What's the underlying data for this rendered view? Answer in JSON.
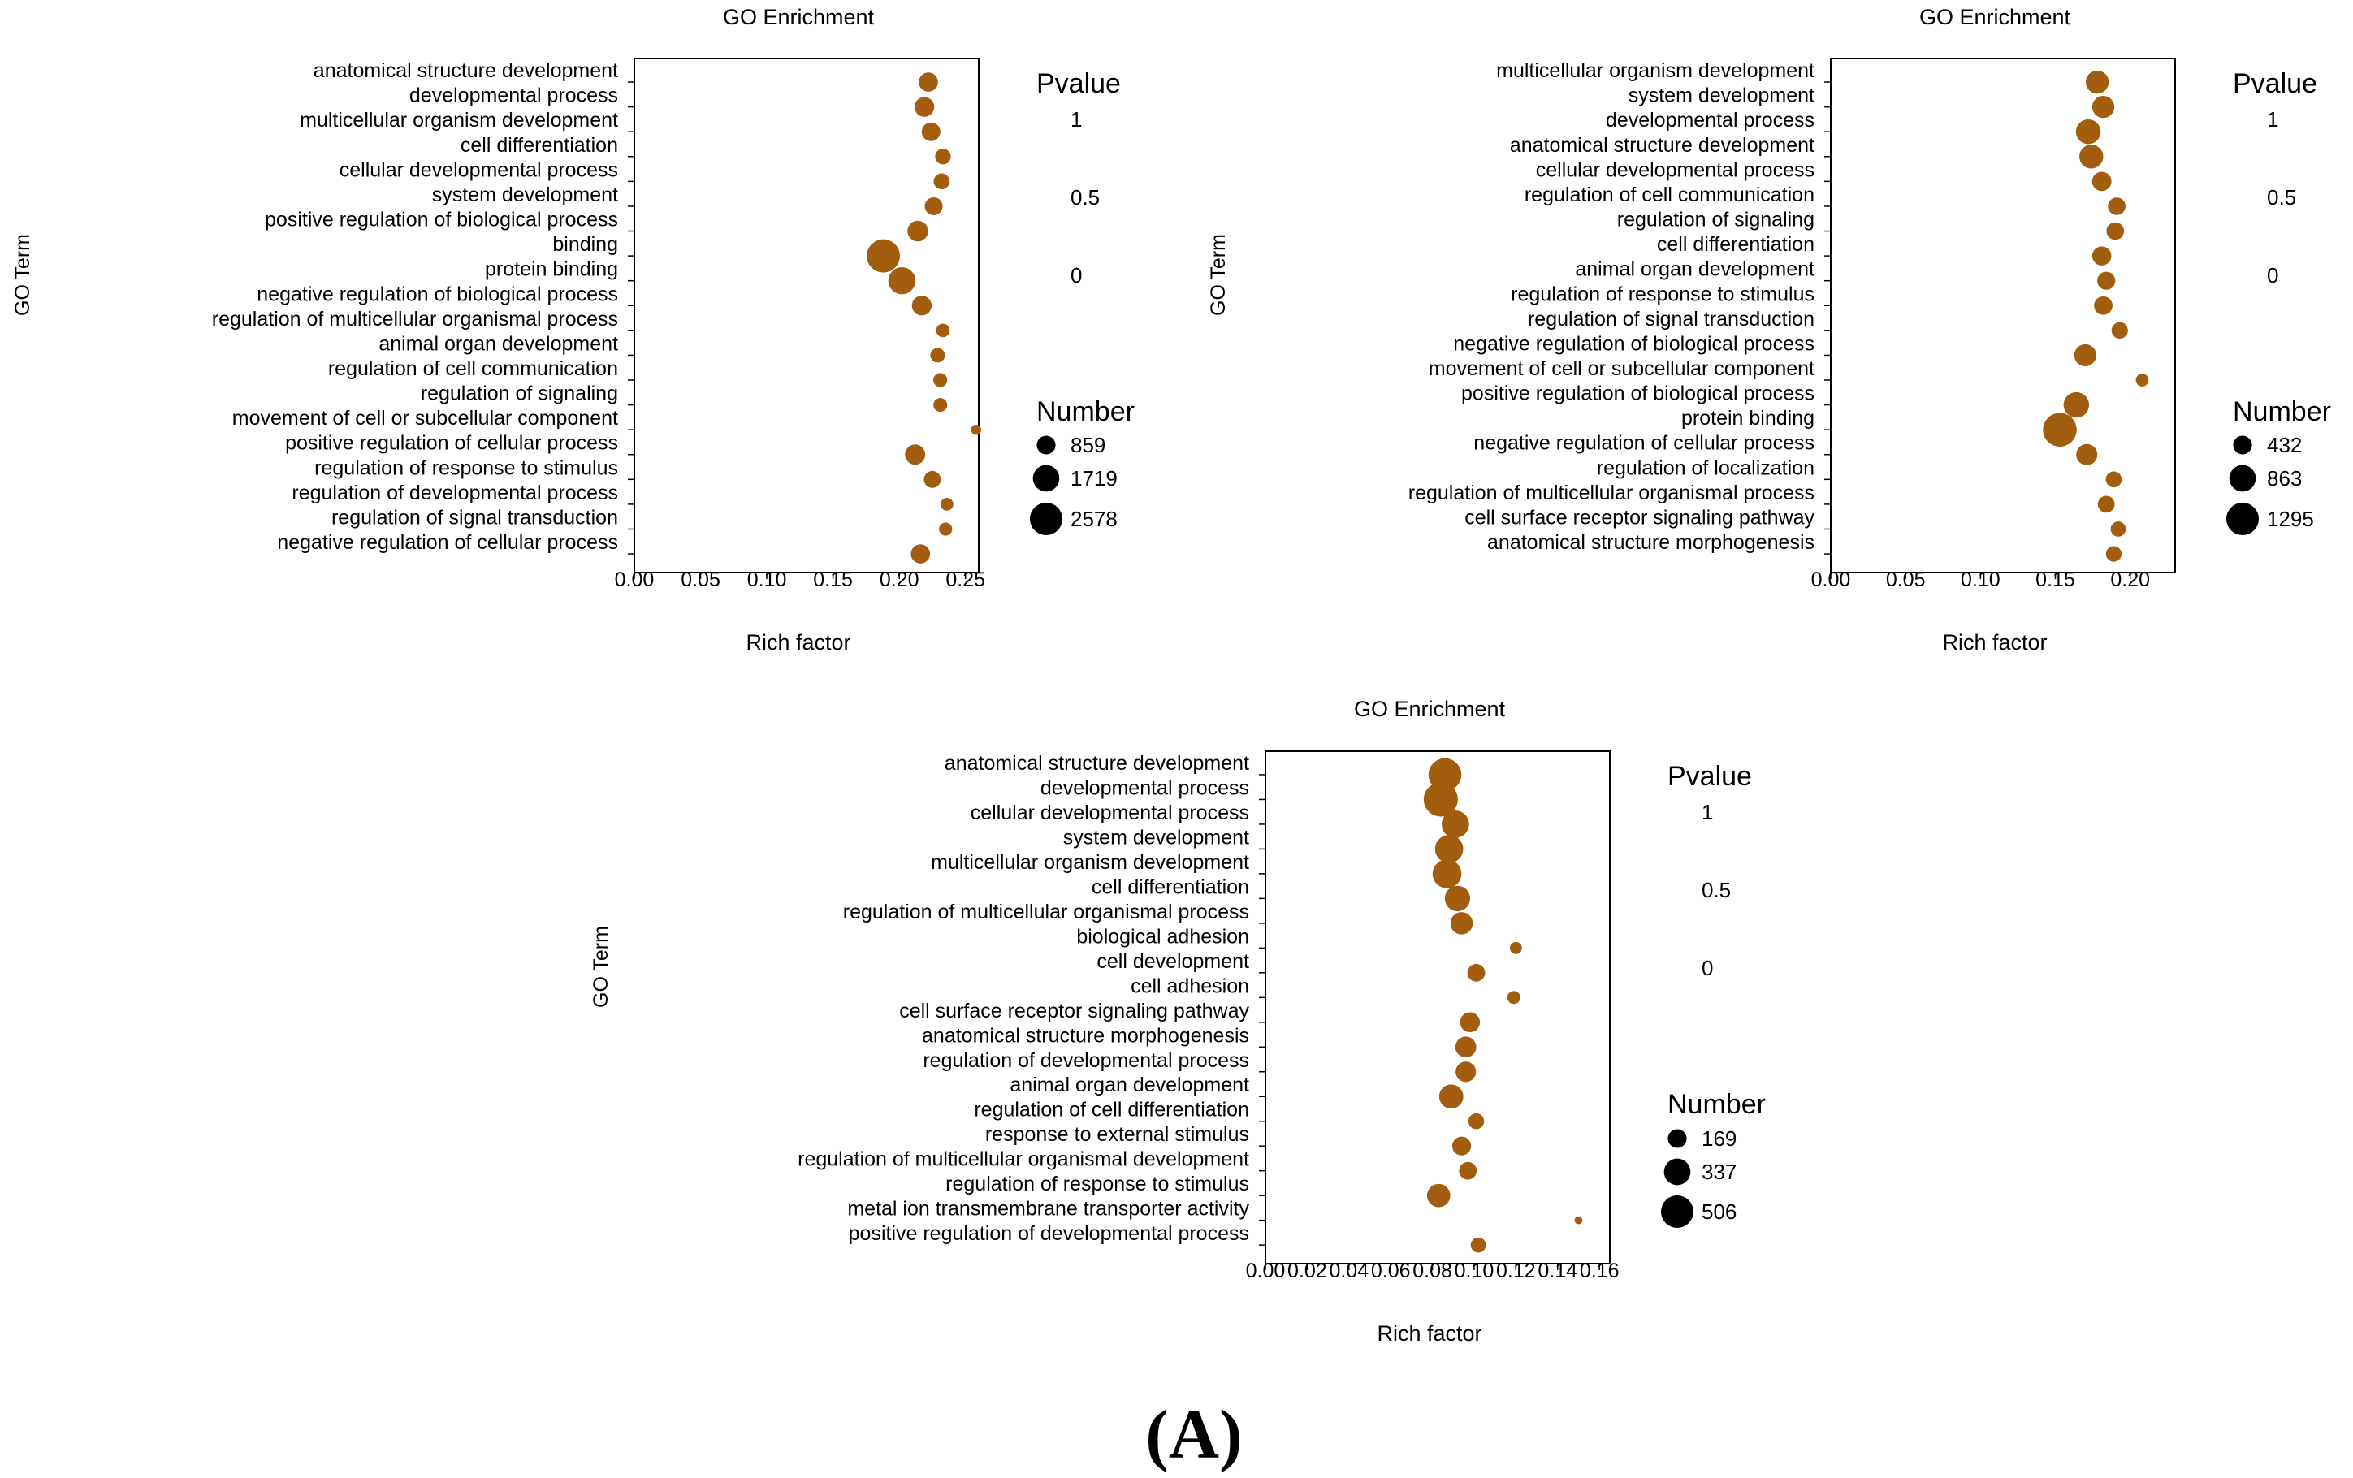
{
  "figure_label": "(A)",
  "chart_data": [
    {
      "type": "scatter",
      "title": "GO Enrichment",
      "xlabel": "Rich factor",
      "ylabel": "GO Term",
      "xlim": [
        0,
        0.26
      ],
      "xticks": [
        "0.00",
        "0.05",
        "0.10",
        "0.15",
        "0.20",
        "0.25"
      ],
      "xtick_values": [
        0,
        0.05,
        0.1,
        0.15,
        0.2,
        0.25
      ],
      "categories": [
        "anatomical structure development",
        "developmental process",
        "multicellular organism development",
        "cell differentiation",
        "cellular developmental process",
        "system development",
        "positive regulation of biological process",
        "binding",
        "protein binding",
        "negative regulation of biological process",
        "regulation of multicellular organismal process",
        "animal organ development",
        "regulation of cell communication",
        "regulation of signaling",
        "movement of cell or subcellular component",
        "positive regulation of cellular process",
        "regulation of response to stimulus",
        "regulation of developmental process",
        "regulation of signal transduction",
        "negative regulation of cellular process"
      ],
      "rich_factor": [
        0.222,
        0.219,
        0.224,
        0.233,
        0.232,
        0.226,
        0.214,
        0.188,
        0.202,
        0.217,
        0.233,
        0.229,
        0.231,
        0.231,
        0.258,
        0.212,
        0.225,
        0.236,
        0.235,
        0.216
      ],
      "number": [
        900,
        950,
        850,
        600,
        620,
        780,
        1050,
        2700,
        1800,
        950,
        450,
        520,
        480,
        470,
        250,
        1000,
        700,
        400,
        420,
        900
      ],
      "pvalue": [
        0,
        0,
        0,
        0,
        0,
        0,
        0,
        0,
        0,
        0,
        0,
        0,
        0,
        0,
        0,
        0,
        0,
        0,
        0,
        0
      ],
      "point_color": "#a35d0e",
      "legend_pvalue": {
        "title": "Pvalue",
        "labels": [
          "1",
          "0.5",
          "0"
        ]
      },
      "legend_number": {
        "title": "Number",
        "labels": [
          "859",
          "1719",
          "2578"
        ],
        "values": [
          859,
          1719,
          2578
        ]
      }
    },
    {
      "type": "scatter",
      "title": "GO Enrichment",
      "xlabel": "Rich factor",
      "ylabel": "GO Term",
      "xlim": [
        0,
        0.23
      ],
      "xticks": [
        "0.00",
        "0.05",
        "0.10",
        "0.15",
        "0.20"
      ],
      "xtick_values": [
        0,
        0.05,
        0.1,
        0.15,
        0.2
      ],
      "categories": [
        "multicellular organism development",
        "system development",
        "developmental process",
        "anatomical structure development",
        "cellular developmental process",
        "regulation of cell communication",
        "regulation of signaling",
        "cell differentiation",
        "animal organ development",
        "regulation of response to stimulus",
        "regulation of signal transduction",
        "negative regulation of biological process",
        "movement of cell or subcellular component",
        "positive regulation of biological process",
        "protein binding",
        "negative regulation of cellular process",
        "regulation of localization",
        "regulation of multicellular organismal process",
        "cell surface receptor signaling pathway",
        "anatomical structure morphogenesis"
      ],
      "rich_factor": [
        0.178,
        0.182,
        0.172,
        0.174,
        0.181,
        0.191,
        0.19,
        0.181,
        0.184,
        0.182,
        0.193,
        0.17,
        0.208,
        0.164,
        0.153,
        0.171,
        0.189,
        0.184,
        0.192,
        0.189
      ],
      "number": [
        650,
        600,
        750,
        700,
        460,
        380,
        380,
        450,
        400,
        420,
        330,
        600,
        200,
        800,
        1400,
        550,
        310,
        350,
        280,
        300
      ],
      "pvalue": [
        0,
        0,
        0,
        0,
        0,
        0,
        0,
        0,
        0,
        0,
        0,
        0,
        0,
        0,
        0,
        0,
        0,
        0,
        0,
        0
      ],
      "point_color": "#a35d0e",
      "legend_pvalue": {
        "title": "Pvalue",
        "labels": [
          "1",
          "0.5",
          "0"
        ]
      },
      "legend_number": {
        "title": "Number",
        "labels": [
          "432",
          "863",
          "1295"
        ],
        "values": [
          432,
          863,
          1295
        ]
      }
    },
    {
      "type": "scatter",
      "title": "GO Enrichment",
      "xlabel": "Rich factor",
      "ylabel": "GO Term",
      "xlim": [
        0,
        0.165
      ],
      "xticks": [
        "0.00",
        "0.02",
        "0.04",
        "0.06",
        "0.08",
        "0.10",
        "0.12",
        "0.14",
        "0.16"
      ],
      "xtick_values": [
        0,
        0.02,
        0.04,
        0.06,
        0.08,
        0.1,
        0.12,
        0.14,
        0.16
      ],
      "categories": [
        "anatomical structure development",
        "developmental process",
        "cellular developmental process",
        "system development",
        "multicellular organism development",
        "cell differentiation",
        "regulation of multicellular organismal process",
        "biological adhesion",
        "cell development",
        "cell adhesion",
        "cell surface receptor signaling pathway",
        "anatomical structure morphogenesis",
        "regulation of developmental process",
        "animal organ development",
        "regulation of cell differentiation",
        "response to external stimulus",
        "regulation of multicellular organismal development",
        "regulation of response to stimulus",
        "metal ion transmembrane transporter activity",
        "positive regulation of developmental process"
      ],
      "rich_factor": [
        0.086,
        0.084,
        0.091,
        0.088,
        0.087,
        0.092,
        0.094,
        0.12,
        0.101,
        0.119,
        0.098,
        0.096,
        0.096,
        0.089,
        0.101,
        0.094,
        0.097,
        0.083,
        0.15,
        0.102
      ],
      "number": [
        520,
        560,
        360,
        380,
        400,
        310,
        240,
        70,
        150,
        80,
        190,
        210,
        200,
        280,
        120,
        170,
        150,
        260,
        30,
        110
      ],
      "pvalue": [
        0,
        0,
        0,
        0,
        0,
        0,
        0,
        0,
        0,
        0,
        0,
        0,
        0,
        0,
        0,
        0,
        0,
        0,
        0,
        0
      ],
      "point_color": "#a35d0e",
      "legend_pvalue": {
        "title": "Pvalue",
        "labels": [
          "1",
          "0.5",
          "0"
        ]
      },
      "legend_number": {
        "title": "Number",
        "labels": [
          "169",
          "337",
          "506"
        ],
        "values": [
          169,
          337,
          506
        ]
      }
    }
  ]
}
